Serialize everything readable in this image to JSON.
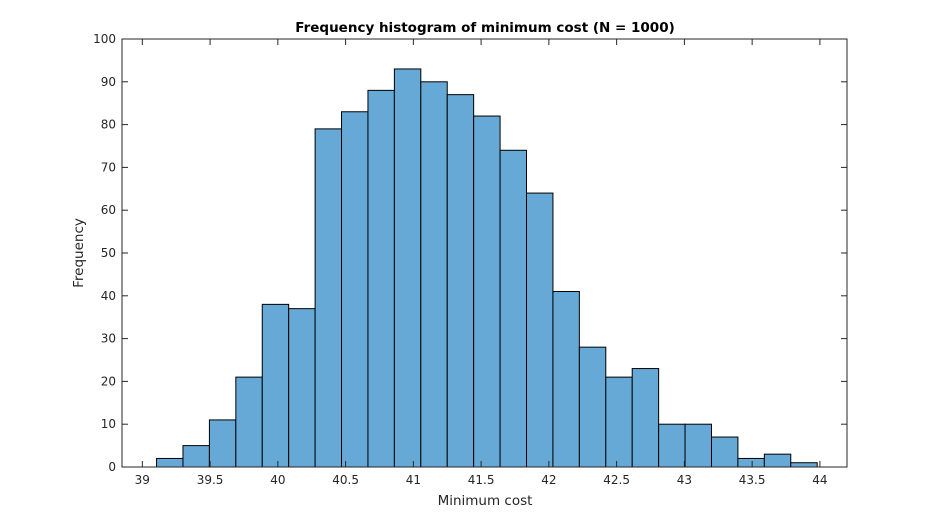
{
  "chart_data": {
    "type": "bar",
    "title": "Frequency histogram of minimum cost (N = 1000)",
    "xlabel": "Minimum cost",
    "ylabel": "Frequency",
    "xlim": [
      38.85,
      44.2
    ],
    "ylim": [
      0,
      100
    ],
    "xticks": [
      "39",
      "39.5",
      "40",
      "40.5",
      "41",
      "41.5",
      "42",
      "42.5",
      "43",
      "43.5",
      "44"
    ],
    "yticks": [
      "0",
      "10",
      "20",
      "30",
      "40",
      "50",
      "60",
      "70",
      "80",
      "90",
      "100"
    ],
    "bin_edges": [
      39.105,
      39.3,
      39.495,
      39.69,
      39.885,
      40.08,
      40.275,
      40.47,
      40.665,
      40.86,
      41.055,
      41.25,
      41.445,
      41.64,
      41.835,
      42.03,
      42.225,
      42.42,
      42.615,
      42.81,
      43.005,
      43.2,
      43.395,
      43.59,
      43.785,
      43.98
    ],
    "values": [
      2,
      5,
      11,
      21,
      38,
      37,
      79,
      83,
      88,
      93,
      90,
      87,
      82,
      74,
      64,
      41,
      28,
      21,
      23,
      10,
      10,
      7,
      2,
      3,
      1
    ],
    "bar_color": "#66a9d6",
    "edge_color": "#000000",
    "grid": false,
    "box": true
  }
}
